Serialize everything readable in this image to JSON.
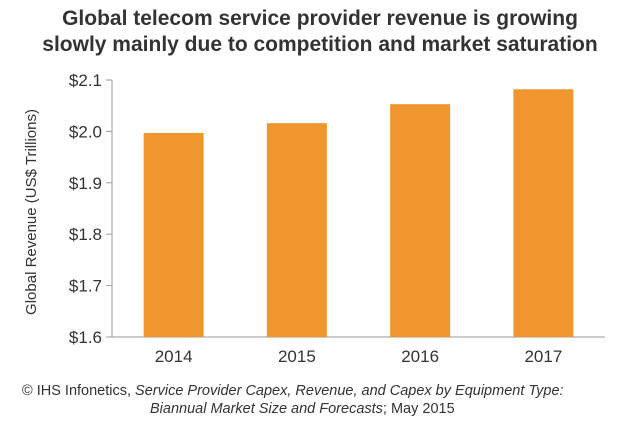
{
  "title": {
    "line1": "Global telecom service provider revenue is growing",
    "line2": "slowly mainly due to competition and market saturation"
  },
  "source": {
    "prefix": "© IHS Infonetics, ",
    "italic_line1": "Service Provider Capex, Revenue, and Capex by Equipment Type:",
    "italic_line2": "Biannual Market Size and Forecasts",
    "suffix": "; May 2015"
  },
  "colors": {
    "bar": "#F0962E",
    "axis": "#9a9a9a",
    "text": "#333333"
  },
  "chart_data": {
    "type": "bar",
    "title": "Global telecom service provider revenue is growing slowly mainly due to competition and market saturation",
    "xlabel": "",
    "ylabel": "Global Revenue (US$ Trillions)",
    "categories": [
      "2014",
      "2015",
      "2016",
      "2017"
    ],
    "values": [
      1.997,
      2.016,
      2.053,
      2.082
    ],
    "ylim": [
      1.6,
      2.1
    ],
    "yticks": [
      1.6,
      1.7,
      1.8,
      1.9,
      2.0,
      2.1
    ],
    "ytick_labels": [
      "$1.6",
      "$1.7",
      "$1.8",
      "$1.9",
      "$2.0",
      "$2.1"
    ],
    "grid": false,
    "legend": "none"
  }
}
